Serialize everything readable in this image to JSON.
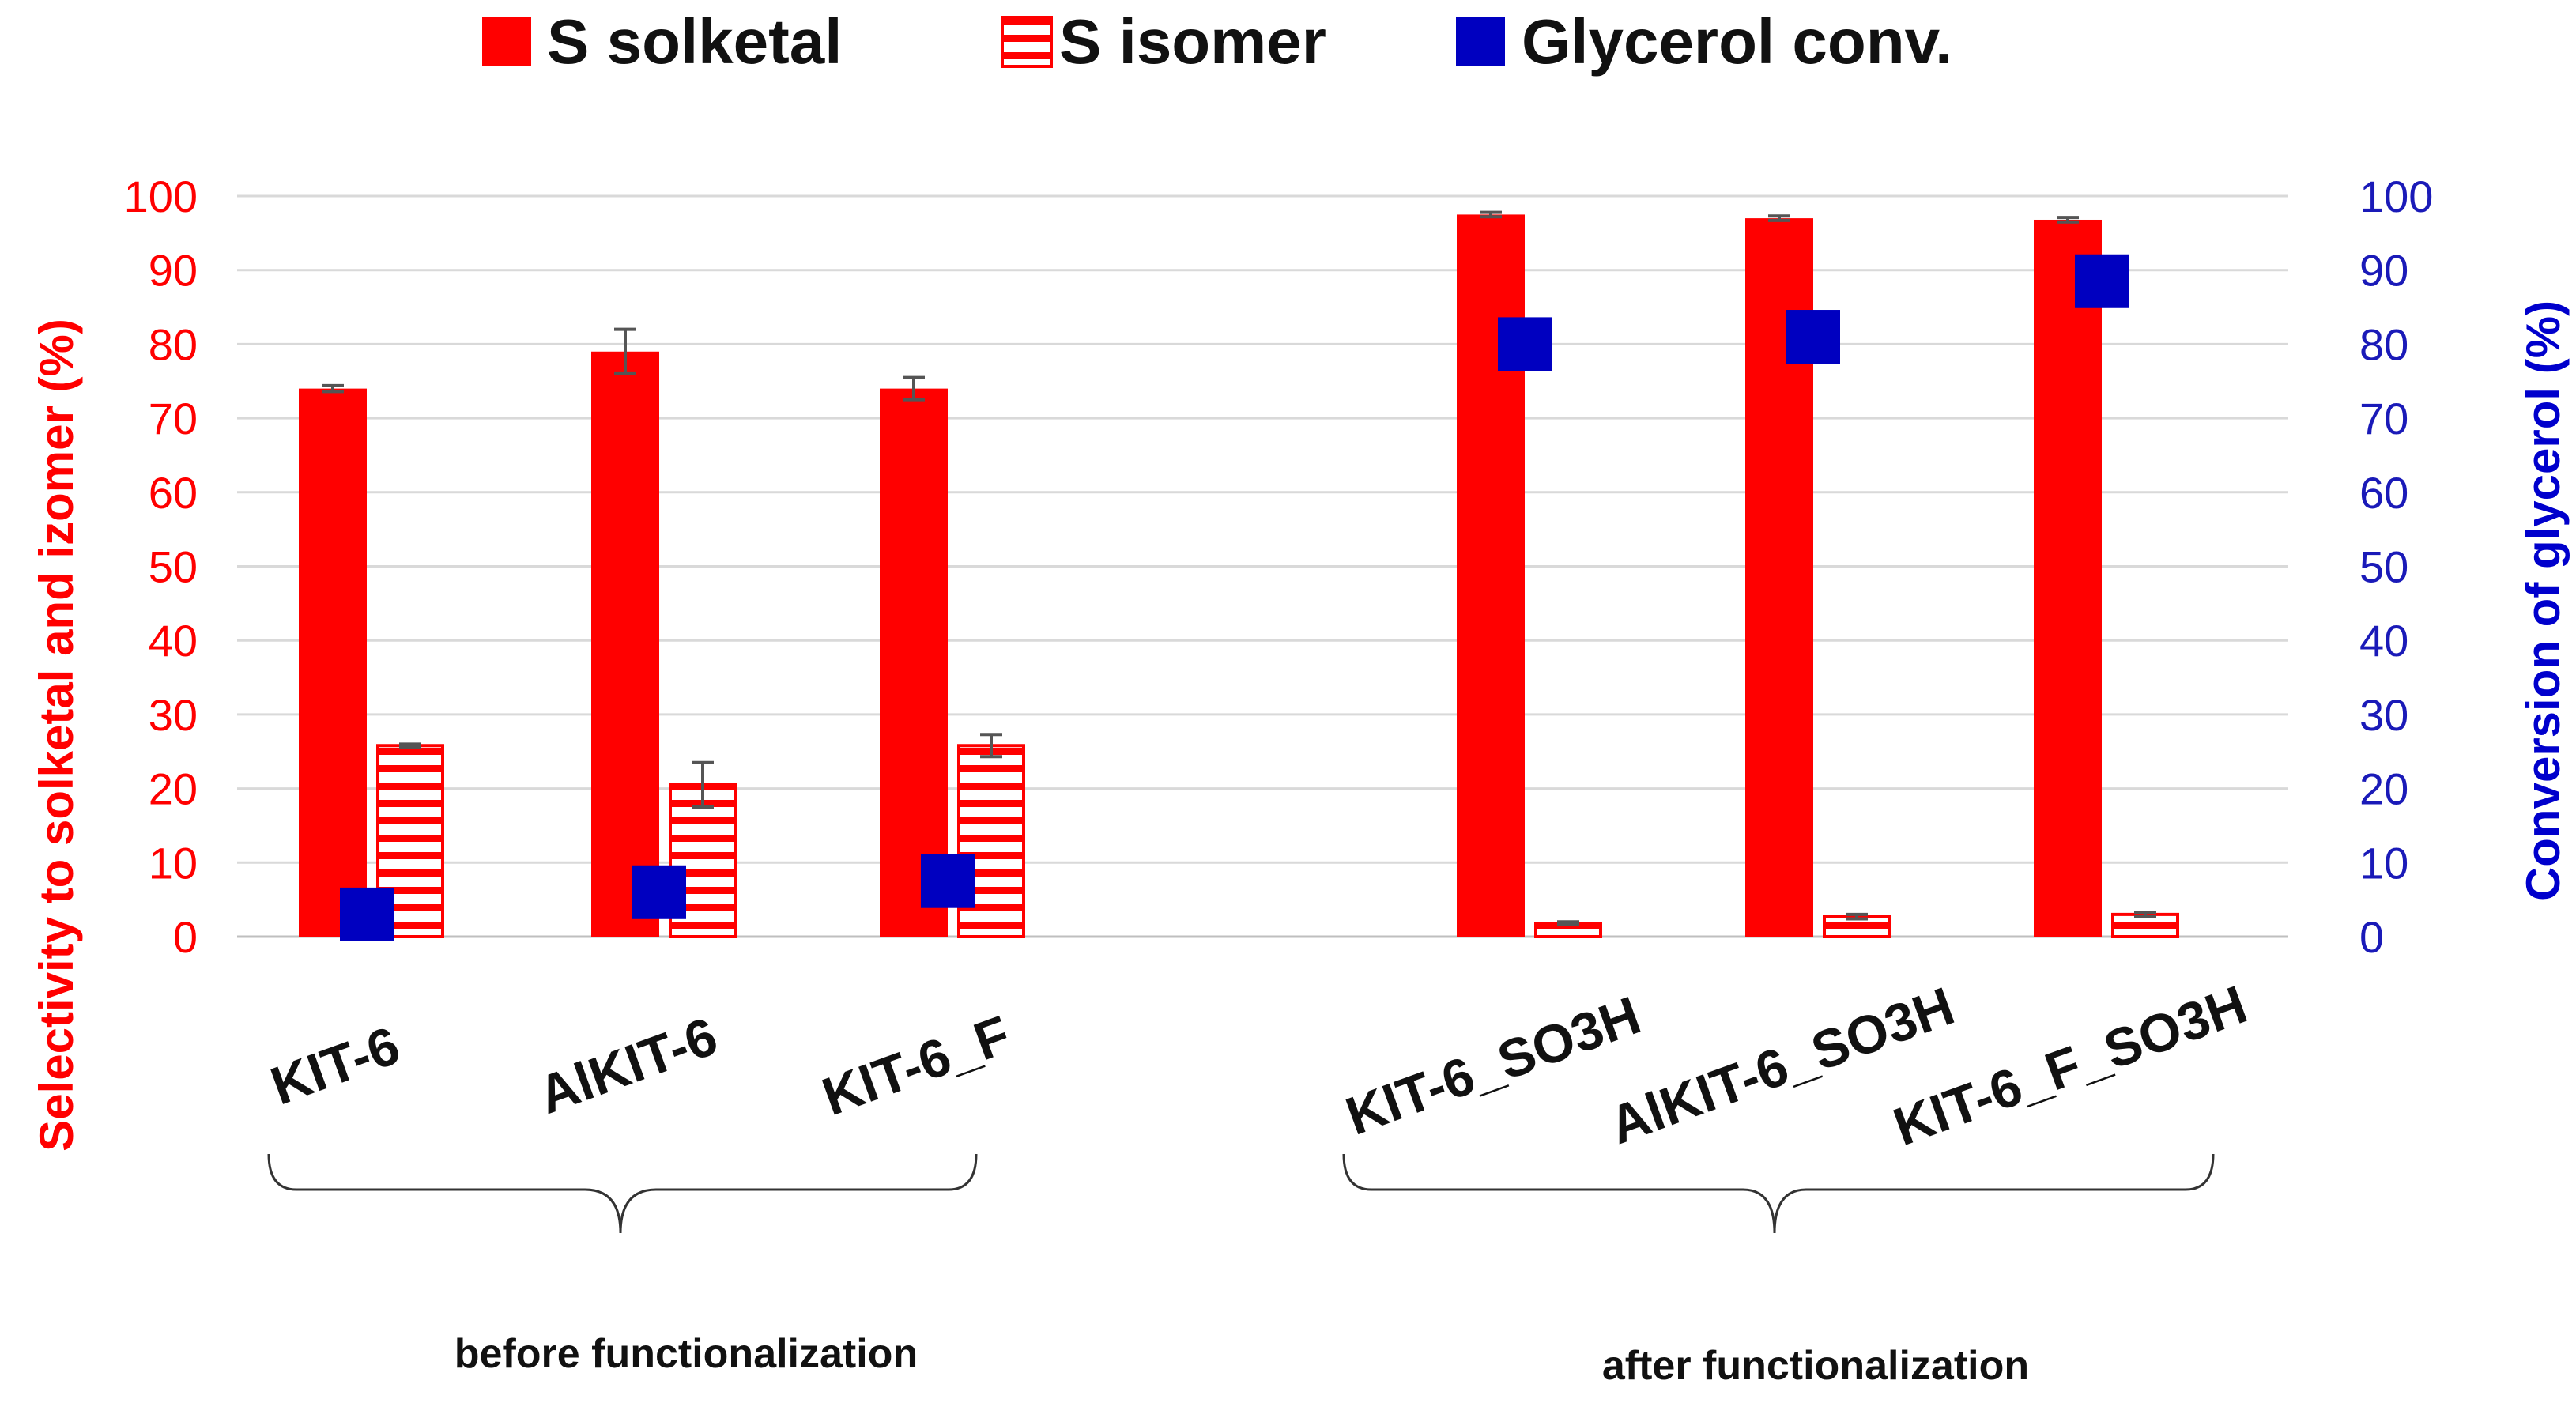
{
  "chart_data": {
    "type": "bar",
    "categories": [
      "KIT-6",
      "AlKIT-6",
      "KIT-6_F",
      "KIT-6_SO3H",
      "AlKIT-6_SO3H",
      "KIT-6_F_SO3H"
    ],
    "series": [
      {
        "name": "S solketal",
        "axis": "left",
        "style": "solid",
        "color": "#ff0000",
        "values": [
          74,
          79,
          74,
          97.5,
          97,
          96.8
        ],
        "errors": [
          0.4,
          3,
          1.5,
          0.3,
          0.3,
          0.3
        ]
      },
      {
        "name": "S isomer",
        "axis": "left",
        "style": "striped",
        "color": "#ff0000",
        "values": [
          25.8,
          20.5,
          25.8,
          1.8,
          2.7,
          3.0
        ],
        "errors": [
          0.2,
          3,
          1.5,
          0.2,
          0.3,
          0.3
        ]
      },
      {
        "name": "Glycerol conv.",
        "axis": "right",
        "style": "marker",
        "color": "#0000c0",
        "values": [
          3,
          6,
          7.5,
          80,
          81,
          88.5
        ]
      }
    ],
    "ylabel": "Selectivity to solketal and izomer (%)",
    "y2label": "Conversion of glycerol (%)",
    "ylim": [
      0,
      100
    ],
    "y2lim": [
      0,
      100
    ],
    "yticks": [
      0,
      10,
      20,
      30,
      40,
      50,
      60,
      70,
      80,
      90,
      100
    ],
    "grid": true,
    "legend_position": "top",
    "groups": [
      {
        "label": "before functionalization",
        "categories": [
          "KIT-6",
          "AlKIT-6",
          "KIT-6_F"
        ]
      },
      {
        "label": "after functionalization",
        "categories": [
          "KIT-6_SO3H",
          "AlKIT-6_SO3H",
          "KIT-6_F_SO3H"
        ]
      }
    ]
  },
  "colors": {
    "red": "#ff0000",
    "blue": "#0000c0",
    "grid": "#d9d9d9",
    "error": "#555555"
  }
}
